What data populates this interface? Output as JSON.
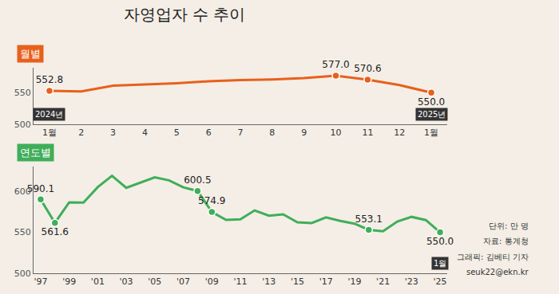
{
  "title": "자영업자 수 추이",
  "notes": [
    "단위: 만 명",
    "자료: 통계청",
    "그래픽: 김베티 기자",
    "seuk22@ekn.kr"
  ],
  "chart_data": [
    {
      "type": "line",
      "subtitle": "월별",
      "color": "#e8601c",
      "marker": "circle",
      "grid": false,
      "categories": [
        "1월",
        "2",
        "3",
        "4",
        "5",
        "6",
        "7",
        "8",
        "9",
        "10",
        "11",
        "12",
        "1월"
      ],
      "values": [
        552.8,
        552.0,
        561.0,
        563.0,
        565.0,
        568.0,
        570.0,
        571.0,
        573.0,
        577.0,
        570.6,
        562.0,
        550.0
      ],
      "value_labels": [
        "552.8",
        null,
        null,
        null,
        null,
        null,
        null,
        null,
        null,
        "577.0",
        "570.6",
        null,
        "550.0"
      ],
      "ylim": [
        500,
        590
      ],
      "yticks": [
        500,
        550
      ],
      "annotations": [
        {
          "x": 0,
          "text": "2024년"
        },
        {
          "x": 12,
          "text": "2025년"
        }
      ]
    },
    {
      "type": "line",
      "subtitle": "연도별",
      "color": "#3fae5a",
      "marker": "circle",
      "grid": false,
      "categories": [
        "'97",
        null,
        "'99",
        null,
        "'01",
        null,
        "'03",
        null,
        "'05",
        null,
        "'07",
        null,
        "'09",
        null,
        "'11",
        null,
        "'13",
        null,
        "'15",
        null,
        "'17",
        null,
        "'19",
        null,
        "'21",
        null,
        "'23",
        null,
        "'25"
      ],
      "values": [
        590.1,
        561.6,
        586.6,
        586.4,
        605.1,
        619.0,
        604.3,
        611.0,
        617.2,
        613.5,
        604.9,
        600.5,
        574.9,
        565.1,
        566.0,
        576.8,
        570.3,
        572.0,
        562.2,
        561.4,
        568.2,
        564.0,
        560.6,
        553.1,
        551.3,
        563.2,
        568.9,
        565.0,
        550.0
      ],
      "value_labels": [
        "590.1",
        "561.6",
        null,
        null,
        null,
        null,
        null,
        null,
        null,
        null,
        null,
        "600.5",
        "574.9",
        null,
        null,
        null,
        null,
        null,
        null,
        null,
        null,
        null,
        null,
        "553.1",
        null,
        null,
        null,
        null,
        "550.0"
      ],
      "ylim": [
        500,
        630
      ],
      "yticks": [
        500,
        550,
        600
      ],
      "annotations": [
        {
          "x": 28,
          "text": "1월"
        }
      ]
    }
  ]
}
